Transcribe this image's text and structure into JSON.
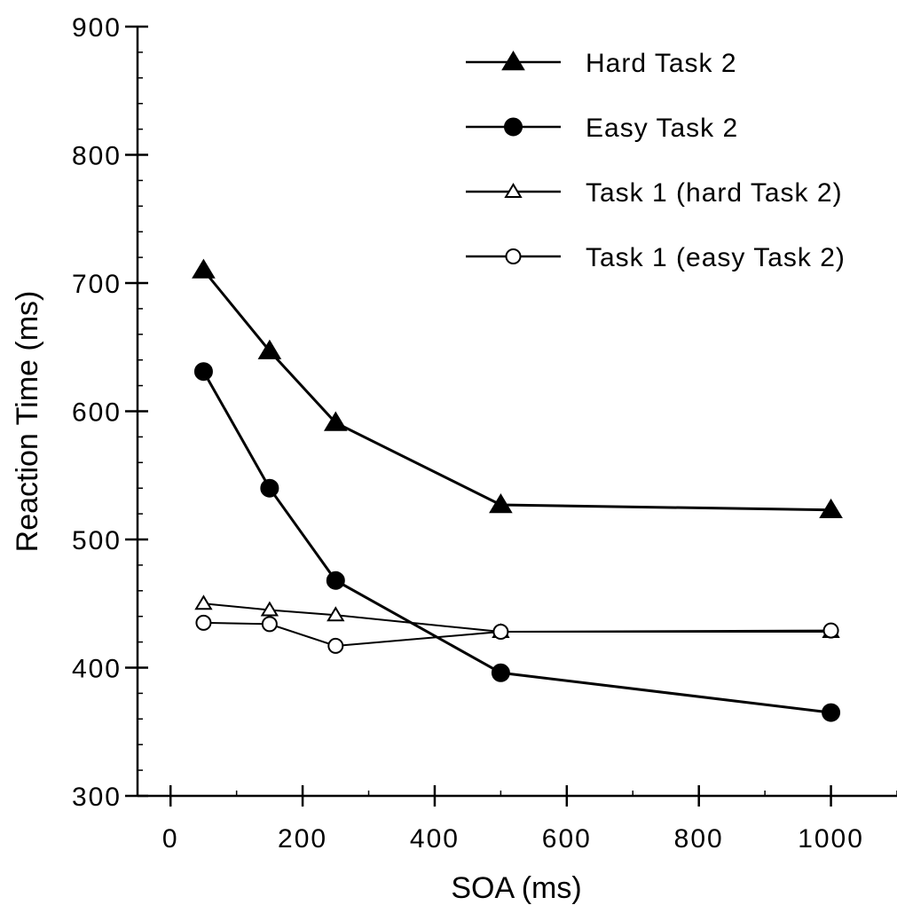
{
  "chart_data": {
    "type": "line",
    "xlabel": "SOA (ms)",
    "ylabel": "Reaction  Time  (ms)",
    "xlim": [
      -50,
      1100
    ],
    "ylim": [
      300,
      900
    ],
    "xticks": [
      0,
      200,
      400,
      600,
      800,
      1000
    ],
    "yticks": [
      300,
      400,
      500,
      600,
      700,
      800,
      900
    ],
    "x_minor_step": 100,
    "y_minor_step": 20,
    "x": [
      50,
      150,
      250,
      500,
      1000
    ],
    "legend_position": "top-right",
    "series": [
      {
        "name": "Hard Task 2",
        "marker": "filled-triangle",
        "values": [
          710,
          647,
          591,
          527,
          523
        ]
      },
      {
        "name": "Easy Task 2",
        "marker": "filled-circle",
        "values": [
          631,
          540,
          468,
          396,
          365
        ]
      },
      {
        "name": "Task 1 (hard Task 2)",
        "marker": "open-triangle",
        "values": [
          450,
          445,
          441,
          428,
          428
        ]
      },
      {
        "name": "Task 1 (easy Task 2)",
        "marker": "open-circle",
        "values": [
          435,
          434,
          417,
          428,
          429
        ]
      }
    ]
  }
}
